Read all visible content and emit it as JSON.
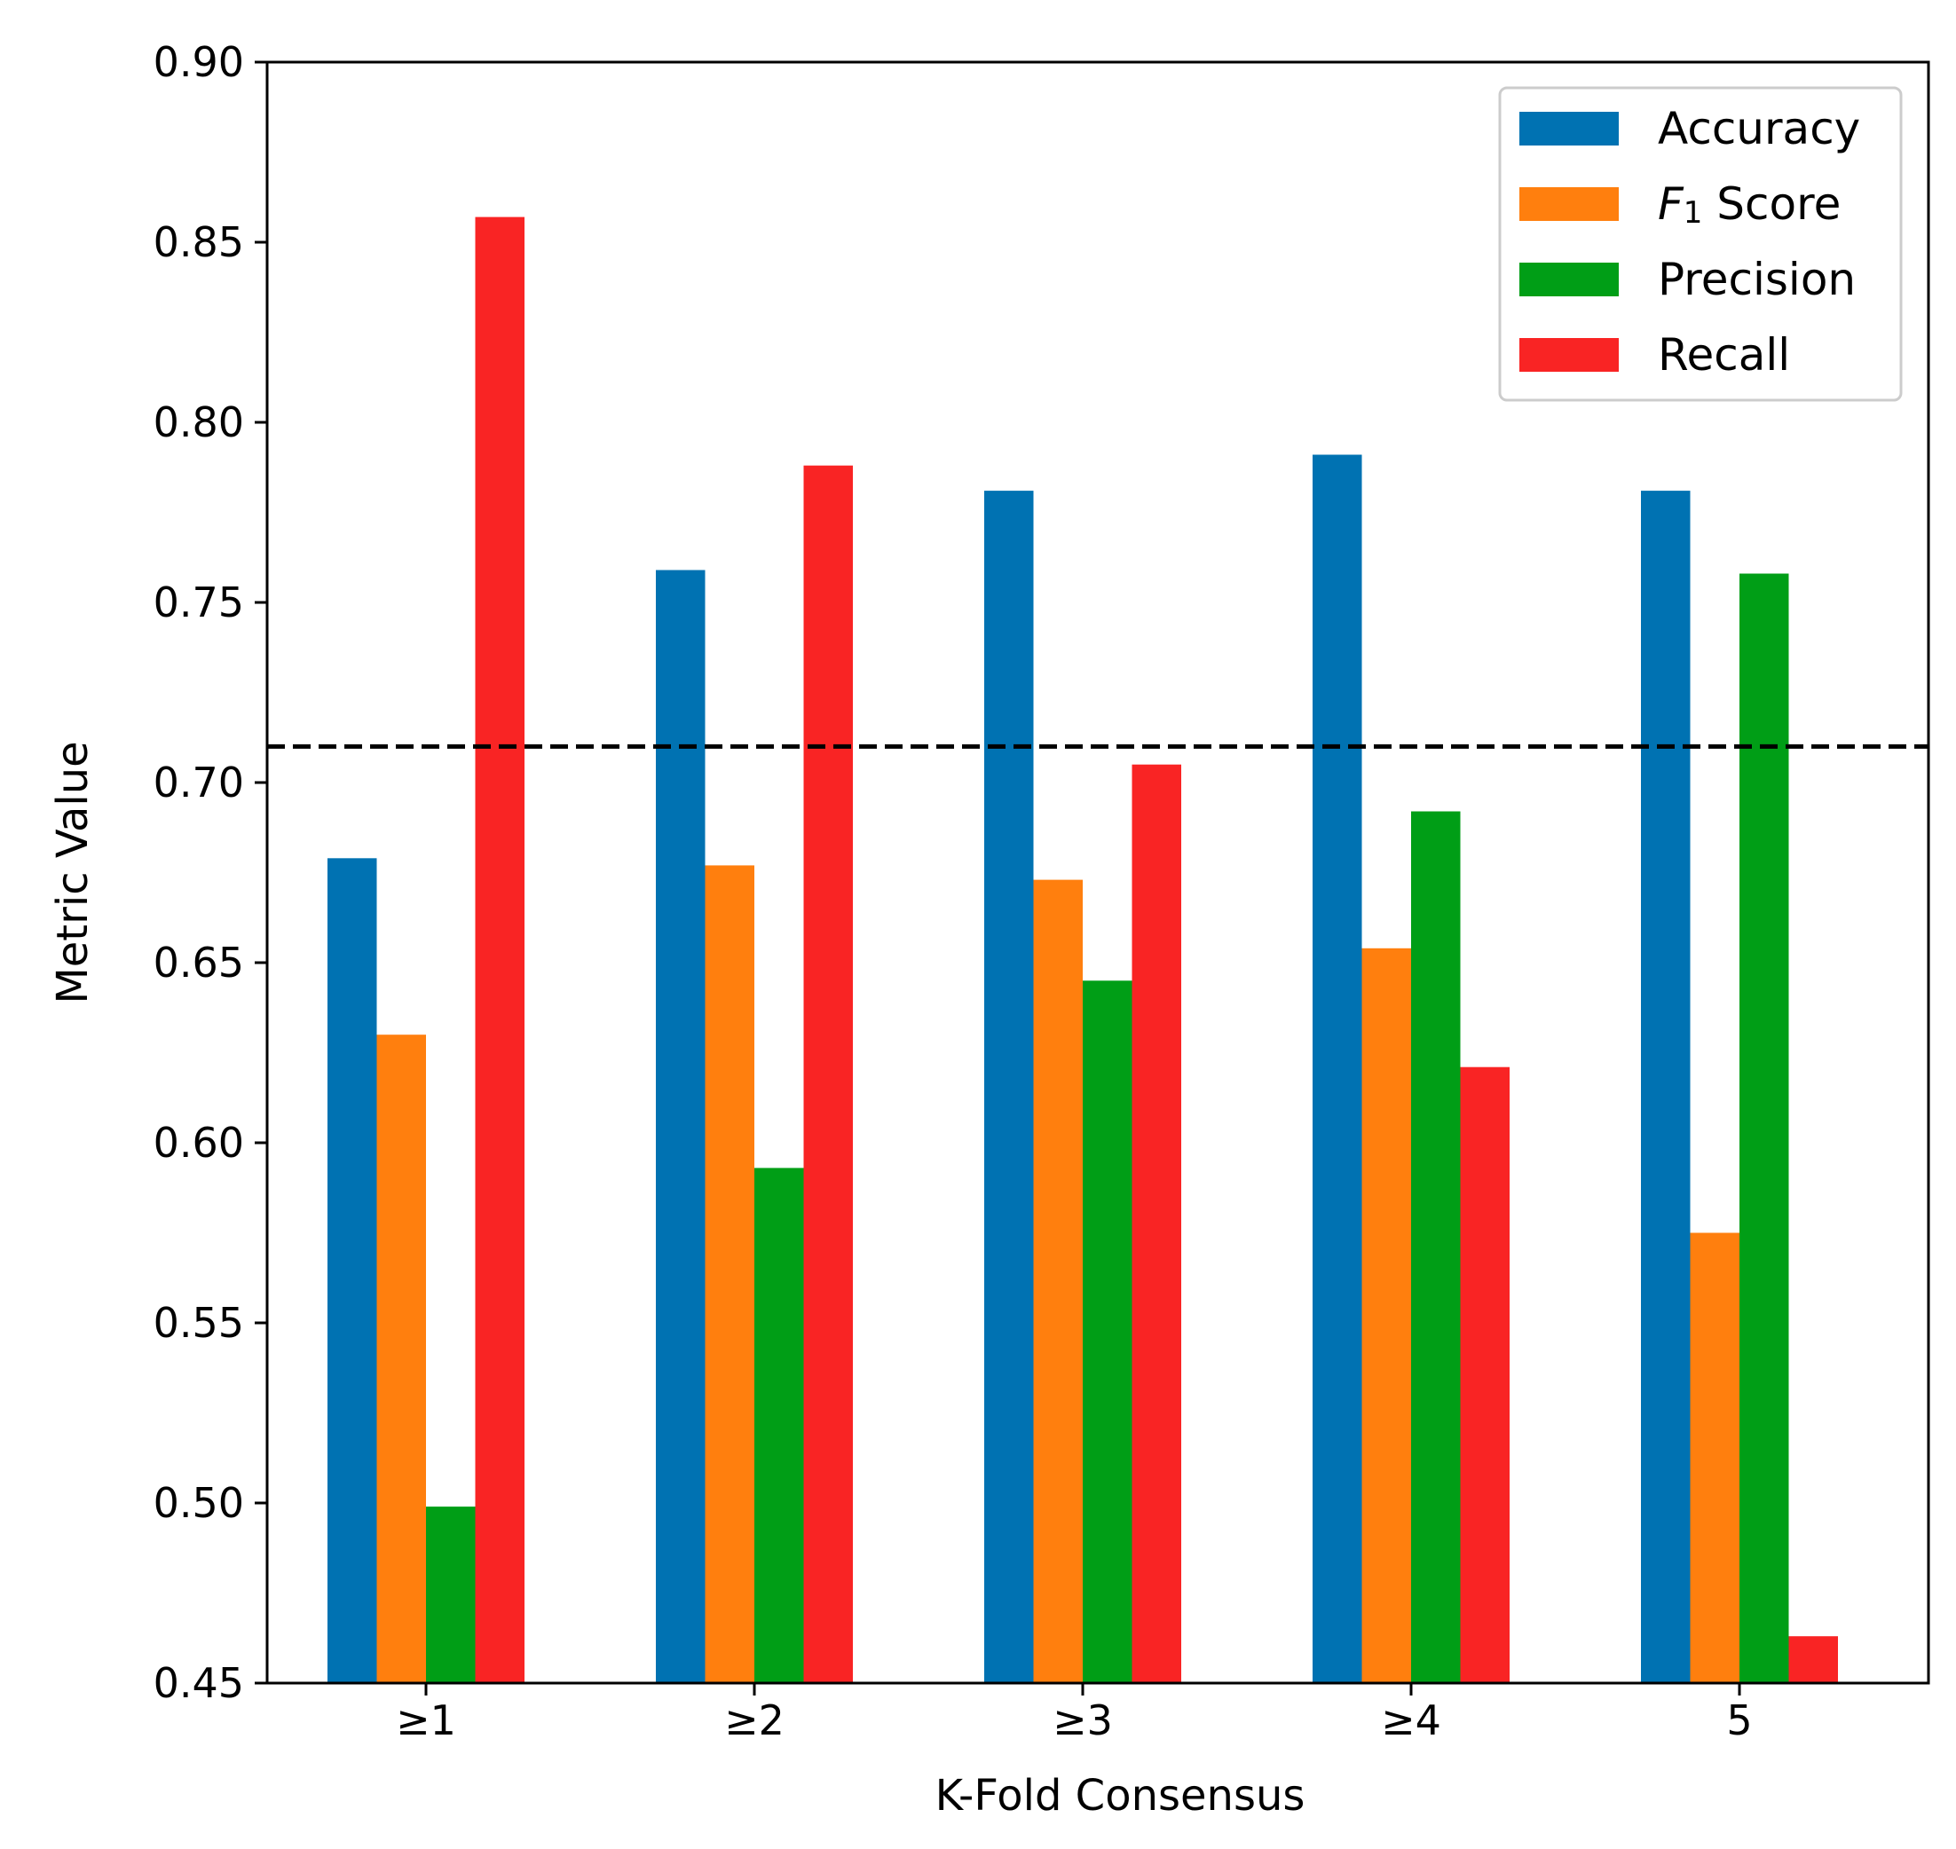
{
  "chart_data": {
    "type": "bar",
    "title": "",
    "xlabel": "K-Fold Consensus",
    "ylabel": "Metric Value",
    "ylim": [
      0.45,
      0.9
    ],
    "yticks": [
      "0.45",
      "0.50",
      "0.55",
      "0.60",
      "0.65",
      "0.70",
      "0.75",
      "0.80",
      "0.85",
      "0.90"
    ],
    "categories": [
      "≥1",
      "≥2",
      "≥3",
      "≥4",
      "5"
    ],
    "series": [
      {
        "name": "Accuracy",
        "color": "#0072b2",
        "values": [
          0.679,
          0.759,
          0.781,
          0.791,
          0.781
        ]
      },
      {
        "name_prefix": "F",
        "name_sub": "1",
        "name_suffix": " Score",
        "name": "F1 Score",
        "color": "#ff7f0e",
        "values": [
          0.63,
          0.677,
          0.673,
          0.654,
          0.575
        ]
      },
      {
        "name": "Precision",
        "color": "#009e16",
        "values": [
          0.499,
          0.593,
          0.645,
          0.692,
          0.758
        ]
      },
      {
        "name": "Recall",
        "color": "#f92424",
        "values": [
          0.857,
          0.788,
          0.705,
          0.621,
          0.463
        ]
      }
    ],
    "reference_line": {
      "value": 0.71,
      "style": "dashed",
      "color": "#000000"
    },
    "legend": {
      "location": "top-right"
    },
    "grid": false
  }
}
